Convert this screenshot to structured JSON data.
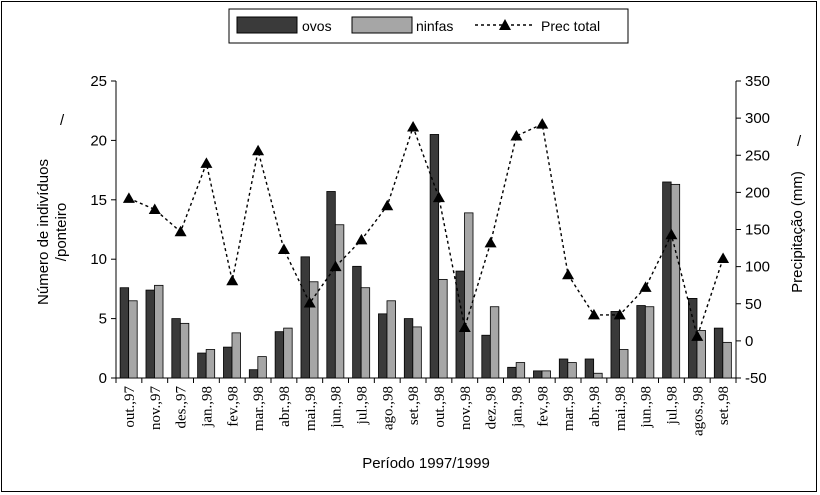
{
  "chart_data": {
    "type": "bar",
    "title": "",
    "xlabel": "Período 1997/1999",
    "ylabel": "Número de indivíduos /ponteiro",
    "ylabel_line1": "Número de indivíduos",
    "ylabel_line2": "/ponteiro",
    "y2label": "Precipitação (mm)",
    "stray_marks": [
      "/",
      "/"
    ],
    "ylim": [
      0,
      25
    ],
    "y2lim": [
      -50,
      350
    ],
    "yticks": [
      0,
      5,
      10,
      15,
      20,
      25
    ],
    "y2ticks": [
      -50,
      0,
      50,
      100,
      150,
      200,
      250,
      300,
      350
    ],
    "legend_position": "top-center",
    "categories": [
      "out.,97",
      "nov.,97",
      "des.,97",
      "jan.,98",
      "fev.,98",
      "mar.,98",
      "abr.,98",
      "mai.,98",
      "jun.,98",
      "jul.,98",
      "ago.,98",
      "set.,98",
      "out.,98",
      "nov.,98",
      "dez.,98",
      "jan.,98",
      "fev.,98",
      "mar.,98",
      "abr.,98",
      "mai.,98",
      "jun.,98",
      "jul.,98",
      "agos.,98",
      "set.,98"
    ],
    "series": [
      {
        "name": "ovos",
        "type": "bar",
        "axis": "left",
        "color": "#3a3a3a",
        "values": [
          7.6,
          7.4,
          5.0,
          2.1,
          2.6,
          0.7,
          3.9,
          10.2,
          15.7,
          9.4,
          5.4,
          5.0,
          20.5,
          9.0,
          3.6,
          0.9,
          0.6,
          1.6,
          1.6,
          5.6,
          6.1,
          16.5,
          6.7,
          4.2
        ]
      },
      {
        "name": "ninfas",
        "type": "bar",
        "axis": "left",
        "color": "#a6a6a6",
        "values": [
          6.5,
          7.8,
          4.6,
          2.4,
          3.8,
          1.8,
          4.2,
          8.1,
          12.9,
          7.6,
          6.5,
          4.3,
          8.3,
          13.9,
          6.0,
          1.3,
          0.6,
          1.3,
          0.4,
          2.4,
          6.0,
          16.3,
          4.0,
          3.0
        ]
      },
      {
        "name": "Prec total",
        "type": "line",
        "axis": "right",
        "color": "#000000",
        "values": [
          192,
          177,
          147,
          239,
          81,
          256,
          123,
          51,
          100,
          136,
          182,
          288,
          193,
          18,
          132,
          276,
          292,
          89,
          35,
          35,
          72,
          143,
          6,
          111
        ]
      }
    ]
  }
}
